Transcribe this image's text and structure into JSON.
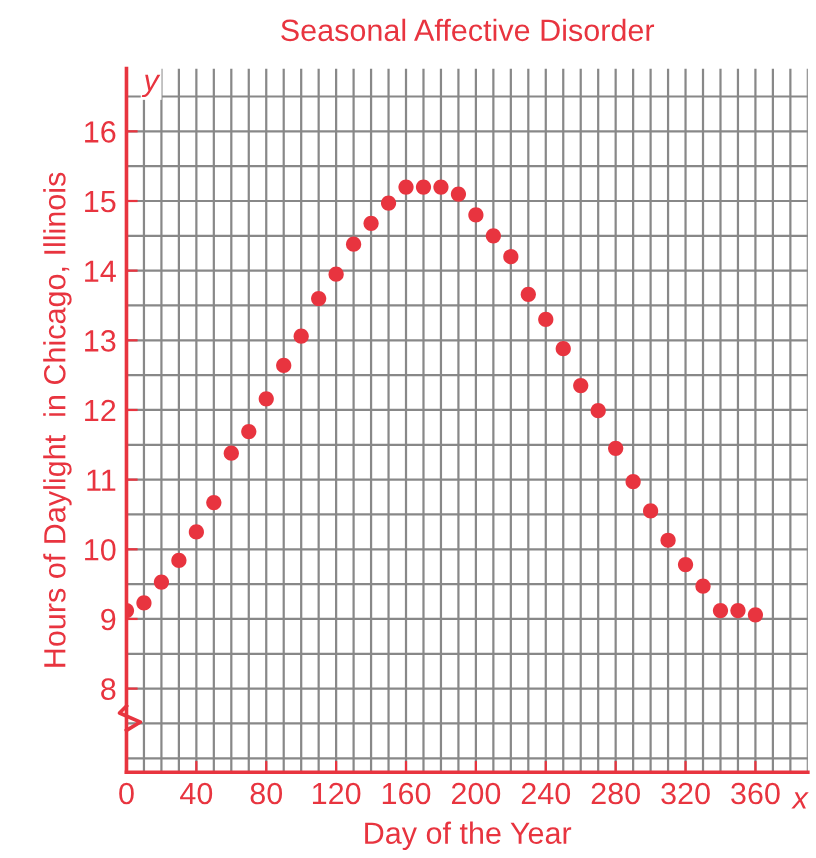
{
  "chart_data": {
    "type": "scatter",
    "title": "Seasonal Affective Disorder",
    "xlabel": "Day of the Year",
    "ylabel": "Hours of Daylight  in Chicago, Illinois",
    "annotations": [
      "x",
      "y"
    ],
    "x": [
      0,
      10,
      20,
      30,
      40,
      50,
      60,
      70,
      80,
      90,
      100,
      110,
      120,
      130,
      140,
      150,
      160,
      170,
      180,
      190,
      200,
      210,
      220,
      230,
      240,
      250,
      260,
      270,
      280,
      290,
      300,
      310,
      320,
      330,
      340,
      350,
      360
    ],
    "series": [
      {
        "color": "#e8343f",
        "values": [
          9.12,
          9.23,
          9.53,
          9.84,
          10.25,
          10.67,
          11.38,
          11.69,
          12.16,
          12.64,
          13.06,
          13.6,
          13.95,
          14.38,
          14.68,
          14.97,
          15.2,
          15.2,
          15.2,
          15.1,
          14.8,
          14.5,
          14.2,
          13.66,
          13.3,
          12.88,
          12.35,
          11.99,
          11.45,
          10.97,
          10.55,
          10.13,
          9.78,
          9.47,
          9.12,
          9.12,
          9.06
        ]
      }
    ],
    "xlim": [
      0,
      390
    ],
    "xticks": [
      0,
      40,
      80,
      120,
      160,
      200,
      240,
      280,
      320,
      360
    ],
    "ylim": [
      6.8,
      16.9
    ],
    "yticks": [
      8,
      9,
      10,
      11,
      12,
      13,
      14,
      15,
      16
    ],
    "grid": true,
    "marker": "circle",
    "legend": false
  }
}
